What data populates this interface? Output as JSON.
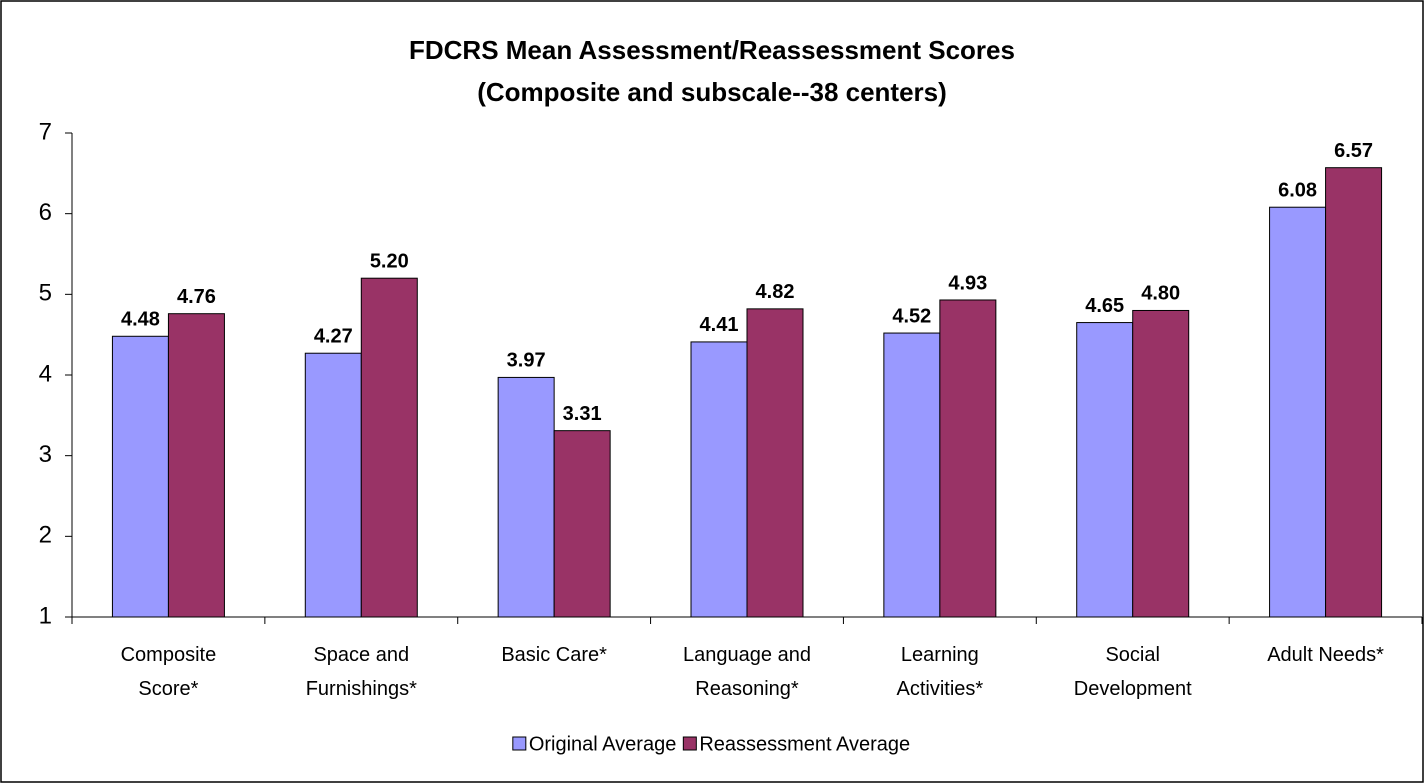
{
  "chart_data": {
    "type": "bar",
    "title": "FDCRS  Mean Assessment/Reassessment Scores",
    "subtitle": "(Composite and subscale--38 centers)",
    "categories": [
      "Composite\nScore*",
      "Space and\nFurnishings*",
      "Basic Care*",
      "Language and\nReasoning*",
      "Learning\nActivities*",
      "Social\nDevelopment",
      "Adult Needs*"
    ],
    "series": [
      {
        "name": "Original Average",
        "color": "#9999ff",
        "label_color": "#000000",
        "values": [
          4.48,
          4.27,
          3.97,
          4.41,
          4.52,
          4.65,
          6.08
        ],
        "value_labels": [
          "4.48",
          "4.27",
          "3.97",
          "4.41",
          "4.52",
          "4.65",
          "6.08"
        ]
      },
      {
        "name": "Reassessment Average",
        "color": "#993366",
        "label_color": "#000080",
        "values": [
          4.76,
          5.2,
          3.31,
          4.82,
          4.93,
          4.8,
          6.57
        ],
        "value_labels": [
          "4.76",
          "5.20",
          "3.31",
          "4.82",
          "4.93",
          "4.80",
          "6.57"
        ]
      }
    ],
    "ylim": [
      1,
      7
    ],
    "yticks": [
      1,
      2,
      3,
      4,
      5,
      6,
      7
    ],
    "grid": false,
    "legend": "bottom"
  }
}
